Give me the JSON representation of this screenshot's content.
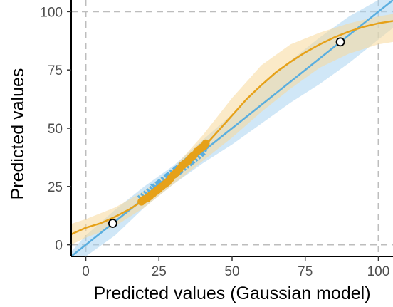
{
  "chart_data": {
    "type": "line",
    "xlabel": "Predicted values (Gaussian model)",
    "ylabel": "Predicted values",
    "xlim": [
      -5,
      105
    ],
    "ylim": [
      -5,
      105
    ],
    "x_ticks": [
      0,
      25,
      50,
      75,
      100
    ],
    "y_ticks": [
      0,
      25,
      50,
      75,
      100
    ],
    "x_tick_labels": [
      "0",
      "25",
      "50",
      "75",
      "100"
    ],
    "y_tick_labels": [
      "0",
      "25",
      "50",
      "75",
      "100"
    ],
    "reference_lines": {
      "x": [
        0,
        100
      ],
      "y": [
        0,
        100
      ],
      "style": "dashed"
    },
    "grid": false,
    "legend": "none",
    "colors": {
      "identity_line": "#5aaedf",
      "identity_band": "#a9d3f0",
      "smooth_curve": "#e6a119",
      "smooth_band": "#f7d99a",
      "reference": "#bdbdbd"
    },
    "series": [
      {
        "kind": "identity_line",
        "x": [
          -5,
          105
        ],
        "y": [
          -5,
          105
        ]
      },
      {
        "kind": "identity_band",
        "x": [
          -5,
          0,
          10,
          20,
          30,
          40,
          50,
          60,
          70,
          80,
          90,
          100,
          105
        ],
        "lower": [
          -9,
          -5,
          4,
          16,
          26,
          35,
          43,
          52,
          61,
          69,
          78,
          88,
          93
        ],
        "upper": [
          -3,
          4,
          15,
          25,
          34,
          45,
          56,
          68,
          79,
          89,
          98,
          105,
          105
        ]
      },
      {
        "kind": "smooth_curve",
        "x": [
          -5,
          0,
          5,
          10,
          15,
          20,
          25,
          30,
          35,
          40,
          45,
          50,
          55,
          60,
          65,
          70,
          75,
          80,
          85,
          90,
          95,
          100,
          105
        ],
        "y": [
          4.5,
          7.3,
          9.2,
          12,
          15.3,
          19.3,
          24,
          29,
          35,
          41.5,
          48.5,
          55.5,
          62.5,
          68.5,
          74,
          78.5,
          82.5,
          86,
          89,
          91.5,
          93.5,
          95,
          96
        ]
      },
      {
        "kind": "smooth_band",
        "x": [
          -5,
          0,
          10,
          20,
          30,
          40,
          50,
          60,
          70,
          80,
          90,
          100,
          105
        ],
        "lower": [
          0,
          3,
          8,
          16,
          26,
          36,
          46,
          57,
          67,
          76,
          82,
          86,
          87
        ],
        "upper": [
          9,
          11,
          16,
          23,
          33,
          47,
          63,
          77,
          86,
          91,
          95,
          98,
          99
        ]
      },
      {
        "kind": "observed_points_blue",
        "x": [
          19,
          20,
          21,
          22,
          23,
          23.5,
          24,
          25,
          25.5,
          26,
          27,
          28,
          28.5,
          29,
          30,
          31,
          31.5,
          32,
          33,
          34,
          35,
          35.5,
          36,
          37,
          38,
          39,
          39.5,
          40
        ],
        "y": [
          19.5,
          20.5,
          21.5,
          22.5,
          23.5,
          24.5,
          24.5,
          25.5,
          26,
          26.5,
          27.5,
          28.5,
          29,
          29.5,
          30.5,
          31.5,
          32,
          32.5,
          33.5,
          34.5,
          35.5,
          36,
          36.5,
          37.5,
          38.5,
          39.5,
          40,
          41.5
        ]
      },
      {
        "kind": "observed_points_orange",
        "x": [
          19,
          19.5,
          20,
          21,
          21.5,
          22,
          23,
          24,
          24.5,
          25,
          26,
          27,
          27.5,
          28,
          29,
          30,
          30.5,
          31,
          32,
          33,
          33.5,
          34,
          35,
          36,
          36.5,
          37,
          38,
          39,
          40,
          40.5,
          41
        ],
        "y": [
          18.5,
          19,
          19.5,
          20,
          20.5,
          21,
          22,
          23,
          23.5,
          24,
          25,
          26,
          26.5,
          27,
          28.5,
          30,
          30.5,
          31,
          32.5,
          34,
          34.5,
          35,
          36,
          37.5,
          38,
          38.5,
          40,
          41,
          42,
          42.5,
          43.5
        ]
      },
      {
        "kind": "highlighted_points",
        "x": [
          9.2,
          87
        ],
        "y": [
          9.2,
          87
        ]
      }
    ]
  }
}
